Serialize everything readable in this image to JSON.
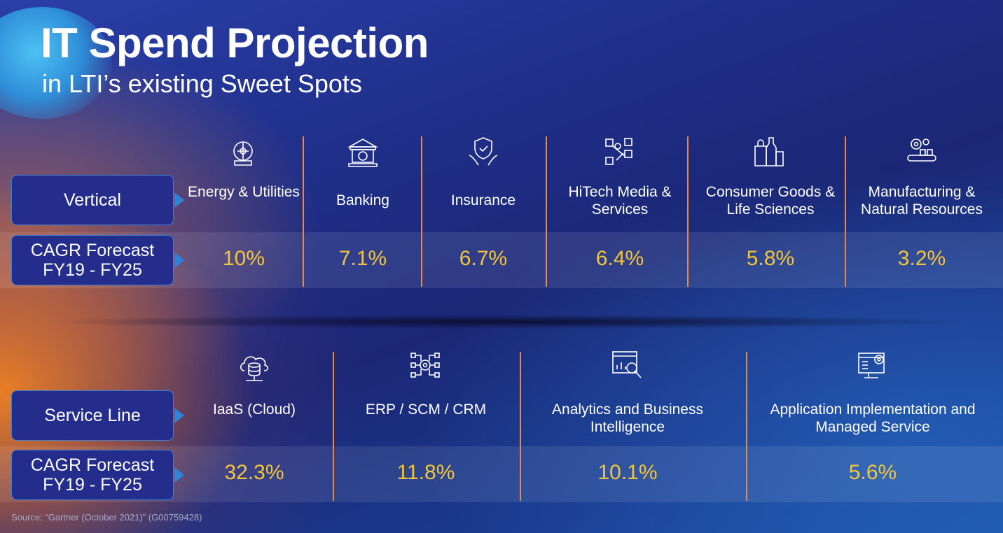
{
  "header": {
    "title": "IT Spend Projection",
    "subtitle": "in LTI’s existing Sweet Spots"
  },
  "verticals": {
    "row_label": "Vertical",
    "cagr_label": "CAGR Forecast FY19 - FY25",
    "items": [
      {
        "label": "Energy & Utilities",
        "cagr": "10%",
        "icon": "energy-icon"
      },
      {
        "label": "Banking",
        "cagr": "7.1%",
        "icon": "bank-icon"
      },
      {
        "label": "Insurance",
        "cagr": "6.7%",
        "icon": "insurance-icon"
      },
      {
        "label": "HiTech Media & Services",
        "cagr": "6.4%",
        "icon": "media-icon"
      },
      {
        "label": "Consumer Goods & Life Sciences",
        "cagr": "5.8%",
        "icon": "consumer-goods-icon"
      },
      {
        "label": "Manufacturing & Natural Resources",
        "cagr": "3.2%",
        "icon": "manufacturing-icon"
      }
    ]
  },
  "service_lines": {
    "row_label": "Service Line",
    "cagr_label": "CAGR Forecast FY19 - FY25",
    "items": [
      {
        "label": "IaaS (Cloud)",
        "cagr": "32.3%",
        "icon": "cloud-database-icon"
      },
      {
        "label": "ERP / SCM / CRM",
        "cagr": "11.8%",
        "icon": "network-gear-icon"
      },
      {
        "label": "Analytics and Business Intelligence",
        "cagr": "10.1%",
        "icon": "analytics-icon"
      },
      {
        "label": "Application Implementation and Managed Service",
        "cagr": "5.6%",
        "icon": "monitor-gear-icon"
      }
    ]
  },
  "footer": {
    "source": "Source: “Gartner (October 2021)” (G00759428)"
  },
  "colors": {
    "accent_value": "#f2c63a",
    "divider": "#e8894a",
    "pill": "#242c8c"
  }
}
